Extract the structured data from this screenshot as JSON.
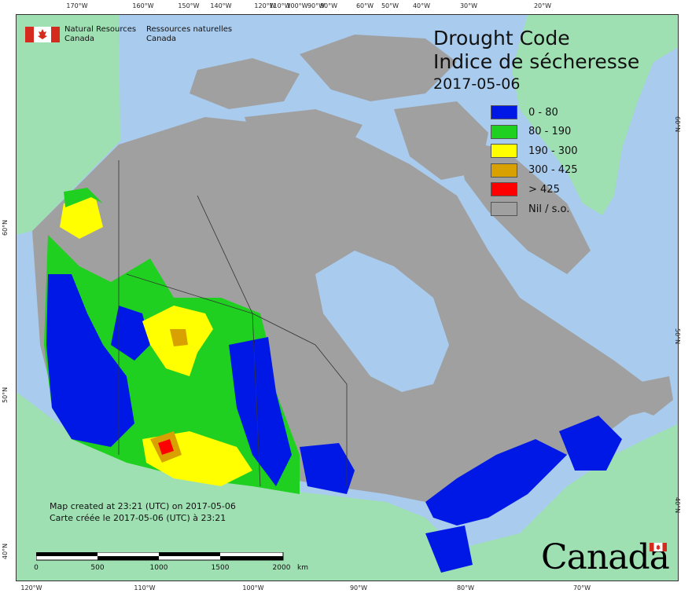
{
  "organization": {
    "en_line1": "Natural Resources",
    "en_line2": "Canada",
    "fr_line1": "Ressources naturelles",
    "fr_line2": "Canada"
  },
  "title": {
    "en": "Drought Code",
    "fr": "Indice de sécheresse",
    "date": "2017-05-06"
  },
  "legend": [
    {
      "label": "0 - 80",
      "color": "#0018e6"
    },
    {
      "label": "80 - 190",
      "color": "#20d020"
    },
    {
      "label": "190 - 300",
      "color": "#ffff00"
    },
    {
      "label": "300 - 425",
      "color": "#d8a000"
    },
    {
      "label": "> 425",
      "color": "#ff0000"
    },
    {
      "label": "Nil / s.o.",
      "color": "#a0a0a0"
    }
  ],
  "graticule": {
    "top": [
      "170°W",
      "160°W",
      "150°W",
      "140°W",
      "120°W",
      "110°W",
      "100°W",
      "90°W",
      "80°W",
      "60°W",
      "50°W",
      "40°W",
      "30°W",
      "20°W"
    ],
    "bottom": [
      "120°W",
      "110°W",
      "100°W",
      "90°W",
      "80°W",
      "70°W"
    ],
    "left": [
      "60°N",
      "50°N",
      "40°N"
    ],
    "right": [
      "60°N",
      "50°N",
      "40°N"
    ]
  },
  "credit": {
    "en": "Map created at 23:21 (UTC) on 2017-05-06",
    "fr": "Carte créée le 2017-05-06 (UTC) à 23:21"
  },
  "scale": {
    "labels": [
      "0",
      "500",
      "1000",
      "1500",
      "2000"
    ],
    "unit": "km"
  },
  "wordmark": "Canada",
  "colors": {
    "water": "#a9cbee",
    "foreign_land": "#9fe0b3",
    "nil_land": "#a0a0a0"
  }
}
